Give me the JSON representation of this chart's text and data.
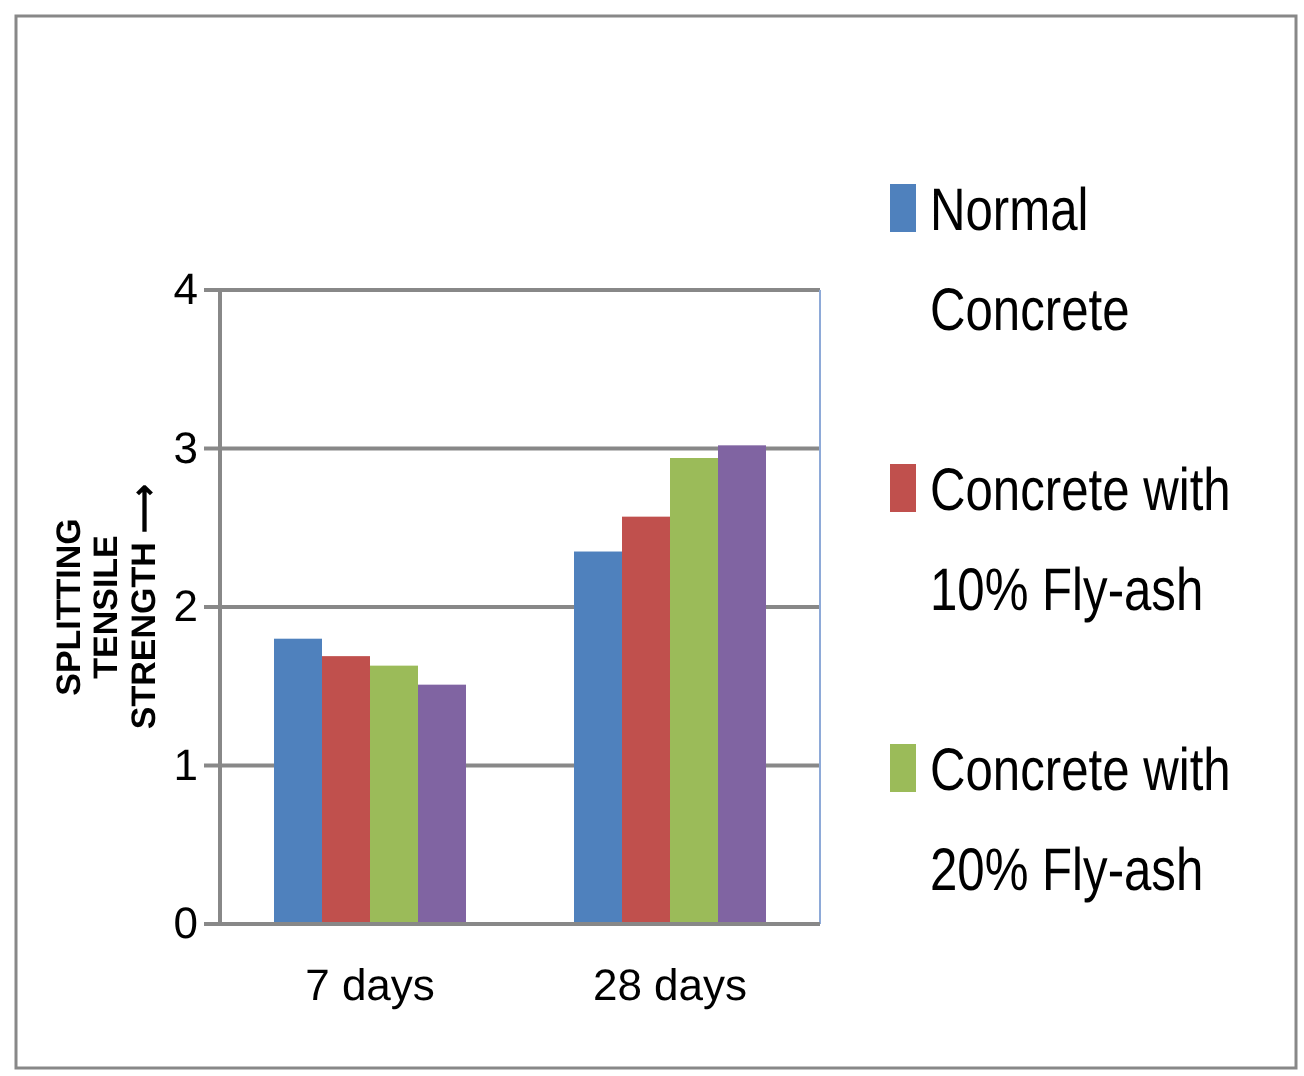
{
  "chart_data": {
    "type": "bar",
    "ylabel": "SPLITTING TENSILE STRENGTH ⟶",
    "categories": [
      "7 days",
      "28 days"
    ],
    "series": [
      {
        "name": "Normal Concrete",
        "color": "#4f81bd",
        "values": [
          1.8,
          2.35
        ]
      },
      {
        "name": "Concrete with 10% Fly-ash",
        "color": "#c0504d",
        "values": [
          1.69,
          2.57
        ]
      },
      {
        "name": "Concrete with 20% Fly-ash",
        "color": "#9bbb59",
        "values": [
          1.63,
          2.94
        ]
      },
      {
        "color": "#8064a2",
        "values": [
          1.51,
          3.02
        ]
      }
    ],
    "ylim": [
      0,
      4
    ],
    "yticks": [
      0,
      1,
      2,
      3,
      4
    ],
    "grid": "y",
    "legend": "right"
  }
}
